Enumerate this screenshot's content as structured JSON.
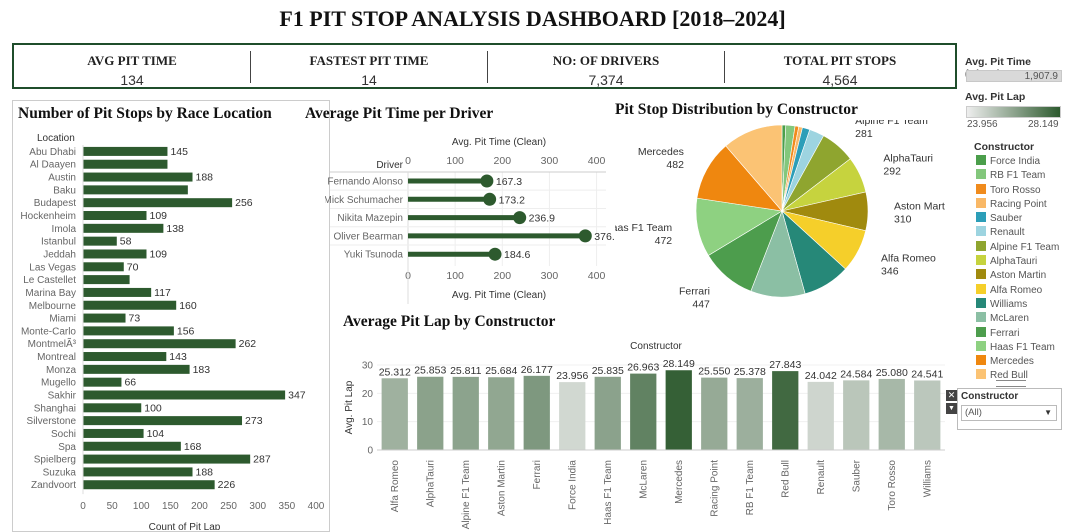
{
  "title": "F1 PIT STOP ANALYSIS DASHBOARD [2018–2024]",
  "kpis": [
    {
      "label": "AVG PIT TIME",
      "value": "134"
    },
    {
      "label": "FASTEST PIT TIME",
      "value": "14"
    },
    {
      "label": "NO: OF DRIVERS",
      "value": "7,374"
    },
    {
      "label": "TOTAL PIT STOPS",
      "value": "4,564"
    }
  ],
  "colors": {
    "bar_dark": "#2d5a2e",
    "title_border": "#1f4d2b",
    "lollipop": "#2d5a2e",
    "gradient_low": "#eeeeee",
    "gradient_high": "#2d5a2e"
  },
  "legends": {
    "pit_time": {
      "title": "Avg. Pit Time (Clean)",
      "value": "1,907.9"
    },
    "pit_lap": {
      "title": "Avg. Pit Lap",
      "min": "23.956",
      "max": "28.149"
    },
    "constructor": {
      "title": "Constructor",
      "items": [
        {
          "name": "Force India",
          "color": "#4b9e4b"
        },
        {
          "name": "RB F1 Team",
          "color": "#83c77c"
        },
        {
          "name": "Toro Rosso",
          "color": "#f08b1d"
        },
        {
          "name": "Racing Point",
          "color": "#f9b866"
        },
        {
          "name": "Sauber",
          "color": "#2c9eb8"
        },
        {
          "name": "Renault",
          "color": "#9dd4e0"
        },
        {
          "name": "Alpine F1 Team",
          "color": "#8fa52f"
        },
        {
          "name": "AlphaTauri",
          "color": "#c6d33e"
        },
        {
          "name": "Aston Martin",
          "color": "#a08a0e"
        },
        {
          "name": "Alfa Romeo",
          "color": "#f5cf2a"
        },
        {
          "name": "Williams",
          "color": "#268878"
        },
        {
          "name": "McLaren",
          "color": "#8bbfa4"
        },
        {
          "name": "Ferrari",
          "color": "#4d9d4d"
        },
        {
          "name": "Haas F1 Team",
          "color": "#8ed181"
        },
        {
          "name": "Mercedes",
          "color": "#ef870f"
        },
        {
          "name": "Red Bull",
          "color": "#fbc374"
        }
      ]
    }
  },
  "filter": {
    "title": "Constructor",
    "value": "(All)"
  },
  "chart_data": [
    {
      "type": "bar",
      "orientation": "horizontal",
      "title": "Number of Pit Stops by Race Location",
      "category_header": "Location",
      "xlabel": "Count of Pit Lap",
      "xlim": [
        0,
        400
      ],
      "xticks": [
        0,
        50,
        100,
        150,
        200,
        250,
        300,
        350,
        400
      ],
      "categories": [
        "Abu Dhabi",
        "Al Daayen",
        "Austin",
        "Baku",
        "Budapest",
        "Hockenheim",
        "Imola",
        "Istanbul",
        "Jeddah",
        "Las Vegas",
        "Le Castellet",
        "Marina Bay",
        "Melbourne",
        "Miami",
        "Monte-Carlo",
        "MontmelÃ³",
        "Montreal",
        "Monza",
        "Mugello",
        "Sakhir",
        "Shanghai",
        "Silverstone",
        "Sochi",
        "Spa",
        "Spielberg",
        "Suzuka",
        "Zandvoort"
      ],
      "values": [
        145,
        145,
        188,
        180,
        256,
        109,
        138,
        58,
        109,
        70,
        80,
        117,
        160,
        73,
        156,
        262,
        143,
        183,
        66,
        347,
        100,
        273,
        104,
        168,
        287,
        188,
        226
      ],
      "data_labels": [
        "145",
        "",
        "188",
        "",
        "256",
        "109",
        "138",
        "58",
        "109",
        "70",
        "",
        "117",
        "160",
        "73",
        "156",
        "262",
        "143",
        "183",
        "66",
        "347",
        "100",
        "273",
        "104",
        "168",
        "287",
        "188",
        "226"
      ]
    },
    {
      "type": "lollipop",
      "title": "Average Pit Time per Driver",
      "category_header": "Driver",
      "xlabel_top": "Avg. Pit Time (Clean)",
      "xlabel_bottom": "Avg. Pit Time (Clean)",
      "xlim": [
        0,
        420
      ],
      "xticks": [
        0,
        100,
        200,
        300,
        400
      ],
      "categories": [
        "Fernando Alonso",
        "Mick Schumacher",
        "Nikita Mazepin",
        "Oliver Bearman",
        "Yuki Tsunoda"
      ],
      "values": [
        167.3,
        173.2,
        236.9,
        376.1,
        184.6
      ],
      "data_labels": [
        "167.3",
        "173.2",
        "236.9",
        "376.1",
        "184.6"
      ]
    },
    {
      "type": "pie",
      "title": "Pit Stop Distribution by Constructor",
      "slices": [
        {
          "name": "Force India",
          "value": 30,
          "label": ""
        },
        {
          "name": "RB F1 Team",
          "value": 74,
          "label": "74"
        },
        {
          "name": "Toro Rosso",
          "value": 30,
          "label": ""
        },
        {
          "name": "Racing Point",
          "value": 30,
          "label": ""
        },
        {
          "name": "Sauber",
          "value": 60,
          "label": ""
        },
        {
          "name": "Renault",
          "value": 120,
          "label": ""
        },
        {
          "name": "Alpine F1 Team",
          "value": 281,
          "label": "281"
        },
        {
          "name": "AlphaTauri",
          "value": 292,
          "label": "292"
        },
        {
          "name": "Aston Martin",
          "value": 310,
          "label": "310"
        },
        {
          "name": "Alfa Romeo",
          "value": 346,
          "label": "346"
        },
        {
          "name": "Williams",
          "value": 380,
          "label": ""
        },
        {
          "name": "McLaren",
          "value": 438,
          "label": "438"
        },
        {
          "name": "Ferrari",
          "value": 447,
          "label": "447"
        },
        {
          "name": "Haas F1 Team",
          "value": 472,
          "label": "472"
        },
        {
          "name": "Mercedes",
          "value": 482,
          "label": "482"
        },
        {
          "name": "Red Bull",
          "value": 485,
          "label": "485"
        }
      ],
      "slice_labels": [
        {
          "name": "Red Bull",
          "value": "485"
        },
        {
          "name": "Mercedes",
          "value": "482"
        },
        {
          "name": "RB F1 Team",
          "value": "74"
        },
        {
          "name": "Alpine F1 Team",
          "value": "281"
        },
        {
          "name": "AlphaTauri",
          "value": "292"
        },
        {
          "name": "Aston Martin",
          "value": "310"
        },
        {
          "name": "Alfa Romeo",
          "value": "346"
        },
        {
          "name": "McLaren",
          "value": "438"
        },
        {
          "name": "Ferrari",
          "value": "447"
        },
        {
          "name": "Haas F1 Team",
          "value": "472"
        }
      ]
    },
    {
      "type": "bar",
      "title": "Average Pit Lap by Constructor",
      "xlabel_top": "Constructor",
      "ylabel": "Avg. Pit Lap",
      "ylim": [
        0,
        30
      ],
      "yticks": [
        0,
        10,
        20,
        30
      ],
      "categories": [
        "Alfa Romeo",
        "AlphaTauri",
        "Alpine F1 Team",
        "Aston Martin",
        "Ferrari",
        "Force India",
        "Haas F1 Team",
        "McLaren",
        "Mercedes",
        "Racing Point",
        "RB F1 Team",
        "Red Bull",
        "Renault",
        "Sauber",
        "Toro Rosso",
        "Williams"
      ],
      "values": [
        25.312,
        25.853,
        25.811,
        25.684,
        26.177,
        23.956,
        25.835,
        26.963,
        28.149,
        25.55,
        25.378,
        27.843,
        24.042,
        24.584,
        25.08,
        24.541
      ],
      "data_labels": [
        "25.312",
        "25.853",
        "25.811",
        "25.684",
        "26.177",
        "23.956",
        "25.835",
        "26.963",
        "28.149",
        "25.550",
        "25.378",
        "27.843",
        "24.042",
        "24.584",
        "25.080",
        "24.541"
      ],
      "color_range": [
        23.956,
        28.149
      ]
    }
  ]
}
